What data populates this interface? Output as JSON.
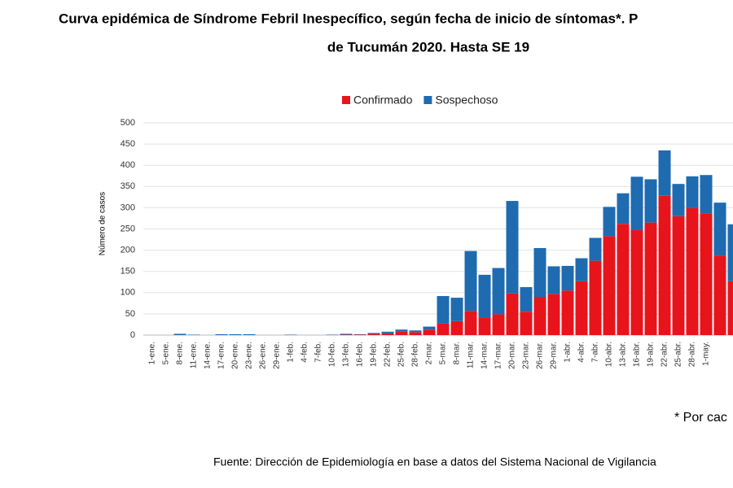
{
  "chart_data": {
    "type": "stacked_bar",
    "title": [
      "Curva epidémica de Síndrome Febril Inespecífico, según fecha de inicio de síntomas*. P",
      "de Tucumán 2020. Hasta SE 19"
    ],
    "y_label": "Número de casos",
    "categories": [
      "1-ene.",
      "5-ene.",
      "8-ene.",
      "11-ene.",
      "14-ene.",
      "17-ene.",
      "20-ene.",
      "23-ene.",
      "26-ene.",
      "29-ene.",
      "1-feb.",
      "4-feb.",
      "7-feb.",
      "10-feb.",
      "13-feb.",
      "16-feb.",
      "19-feb.",
      "22-feb.",
      "25-feb.",
      "28-feb.",
      "2-mar.",
      "5-mar.",
      "8-mar.",
      "11-mar.",
      "14-mar.",
      "17-mar.",
      "20-mar.",
      "23-mar.",
      "26-mar.",
      "29-mar.",
      "1-abr.",
      "4-abr.",
      "7-abr.",
      "10-abr.",
      "13-abr.",
      "16-abr.",
      "19-abr.",
      "22-abr.",
      "25-abr.",
      "28-abr.",
      "1-may.",
      null,
      null
    ],
    "series": [
      {
        "name": "Confirmado",
        "color": "#e8141c",
        "values": [
          0,
          0,
          0,
          0,
          0,
          0,
          0,
          0,
          0,
          0,
          0,
          0,
          0,
          0,
          1,
          1,
          3,
          4,
          8,
          7,
          13,
          27,
          33,
          57,
          42,
          49,
          98,
          55,
          90,
          97,
          105,
          127,
          175,
          233,
          262,
          248,
          265,
          328,
          280,
          299,
          287,
          187,
          127
        ]
      },
      {
        "name": "Sospechoso",
        "color": "#1f6bb0",
        "values": [
          0,
          0,
          3,
          1,
          0,
          2,
          2,
          2,
          0,
          0,
          1,
          0,
          0,
          1,
          2,
          1,
          2,
          4,
          5,
          4,
          7,
          65,
          55,
          141,
          100,
          109,
          218,
          58,
          115,
          65,
          58,
          54,
          54,
          69,
          72,
          125,
          102,
          107,
          76,
          75,
          90,
          125,
          134
        ]
      }
    ],
    "ylim": [
      0,
      500
    ],
    "yticks": [
      0,
      50,
      100,
      150,
      200,
      250,
      300,
      350,
      400,
      450,
      500
    ],
    "grid": true,
    "legend": "top",
    "footnote": "* Por cac",
    "source": "Fuente: Dirección de Epidemiología en base a datos del Sistema Nacional de Vigilancia"
  }
}
